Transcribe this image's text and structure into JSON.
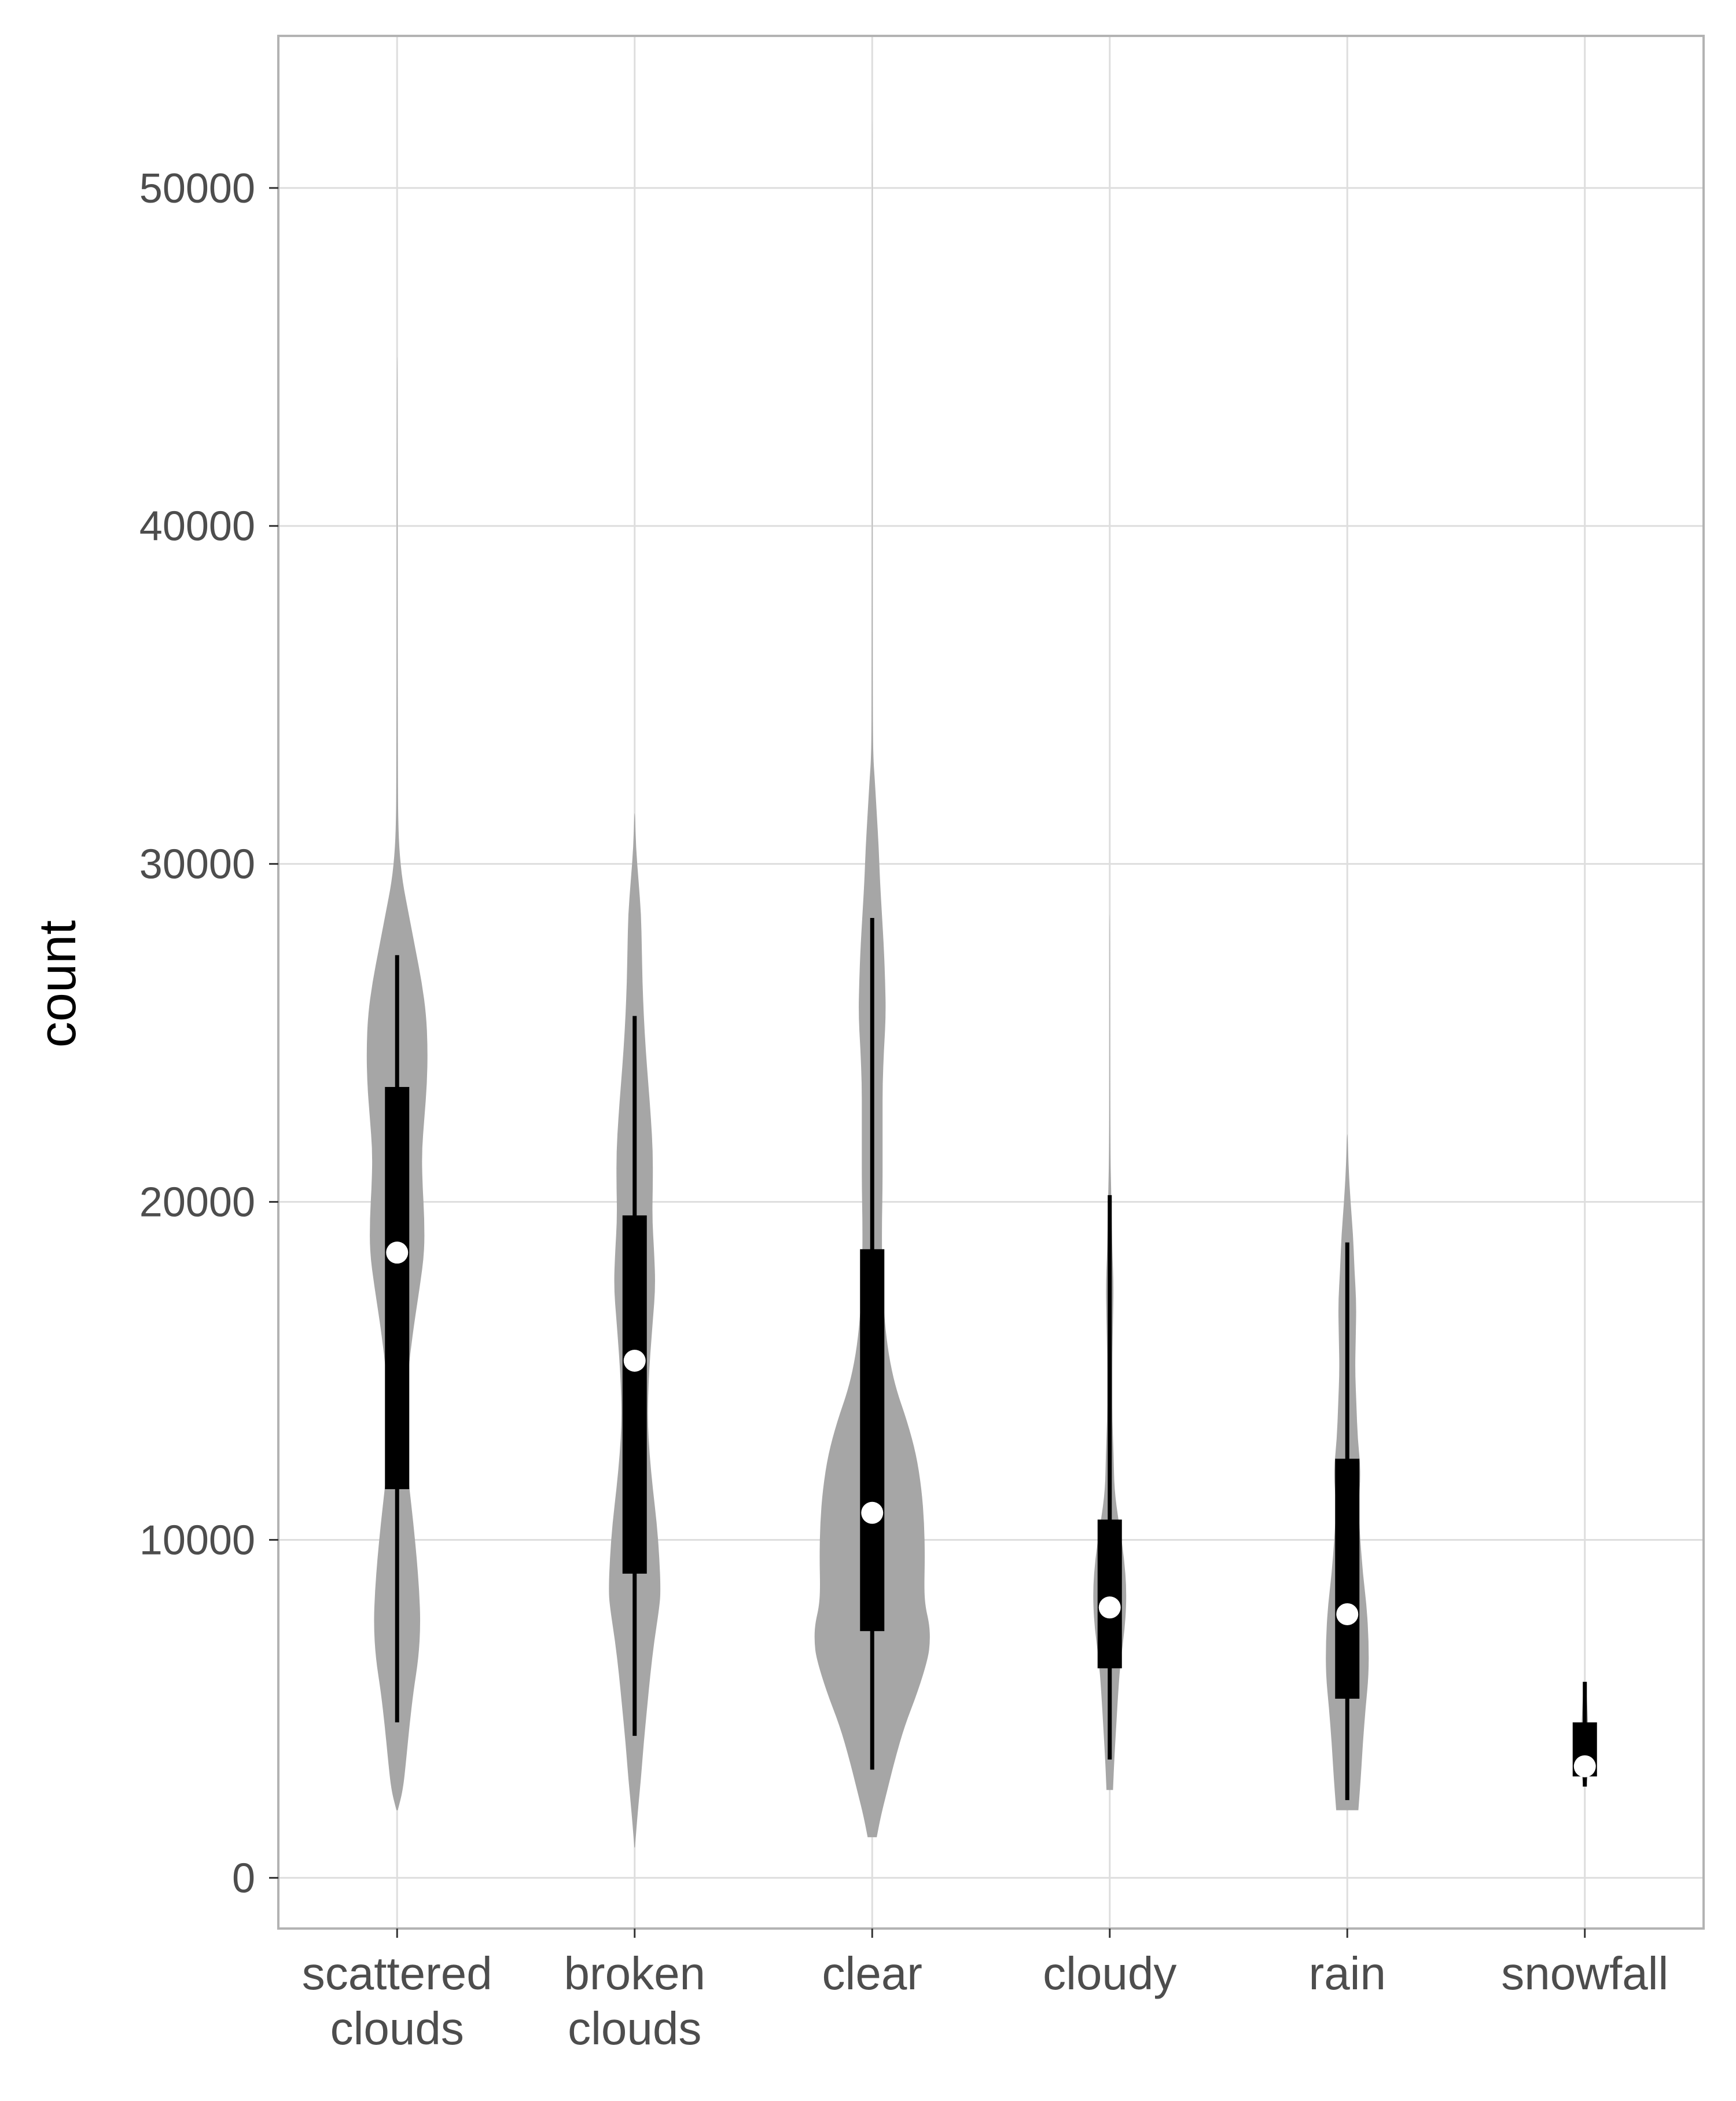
{
  "chart_data": {
    "type": "violin",
    "xlabel": "",
    "ylabel": "count",
    "ylim": [
      -1500,
      54500
    ],
    "y_ticks": [
      0,
      10000,
      20000,
      30000,
      40000,
      50000
    ],
    "y_tick_labels": [
      "0",
      "10000",
      "20000",
      "30000",
      "40000",
      "50000"
    ],
    "grid": true,
    "colors": {
      "violin_fill": "#a6a6a6",
      "box": "#000000",
      "median_dot": "#ffffff",
      "grid": "#dedede",
      "border": "#b3b3b3"
    },
    "categories": [
      {
        "label": [
          "scattered",
          "clouds"
        ],
        "min": 4600,
        "q1": 11500,
        "median": 18500,
        "q3": 23400,
        "max": 27300,
        "density": [
          [
            2000,
            1
          ],
          [
            2600,
            9
          ],
          [
            3500,
            14
          ],
          [
            4500,
            19
          ],
          [
            5500,
            25
          ],
          [
            6500,
            33
          ],
          [
            7500,
            36
          ],
          [
            8500,
            34
          ],
          [
            9500,
            30
          ],
          [
            10500,
            25
          ],
          [
            11500,
            19
          ],
          [
            12500,
            14
          ],
          [
            13500,
            12
          ],
          [
            14500,
            15
          ],
          [
            15500,
            20
          ],
          [
            16500,
            27
          ],
          [
            17500,
            35
          ],
          [
            18500,
            42
          ],
          [
            19500,
            42
          ],
          [
            20500,
            39
          ],
          [
            21500,
            38
          ],
          [
            22500,
            42
          ],
          [
            23500,
            46
          ],
          [
            24500,
            47
          ],
          [
            25500,
            45
          ],
          [
            26500,
            38
          ],
          [
            27500,
            28
          ],
          [
            28500,
            18
          ],
          [
            29500,
            8
          ],
          [
            30500,
            3
          ],
          [
            31500,
            1.5
          ],
          [
            33000,
            1
          ],
          [
            38000,
            0.6
          ],
          [
            45000,
            0.3
          ]
        ]
      },
      {
        "label": [
          "broken",
          "clouds"
        ],
        "min": 4200,
        "q1": 9000,
        "median": 15300,
        "q3": 19600,
        "max": 25500,
        "density": [
          [
            900,
            0.5
          ],
          [
            2000,
            5
          ],
          [
            3000,
            10
          ],
          [
            4000,
            14
          ],
          [
            5000,
            19
          ],
          [
            6000,
            24
          ],
          [
            7000,
            30
          ],
          [
            8000,
            38
          ],
          [
            8500,
            40
          ],
          [
            9500,
            38
          ],
          [
            10500,
            34
          ],
          [
            11500,
            28
          ],
          [
            12500,
            23
          ],
          [
            13500,
            20
          ],
          [
            14500,
            21
          ],
          [
            15500,
            24
          ],
          [
            16500,
            28
          ],
          [
            17500,
            32
          ],
          [
            18500,
            30
          ],
          [
            19500,
            27
          ],
          [
            20500,
            28
          ],
          [
            21500,
            28
          ],
          [
            22500,
            25
          ],
          [
            23500,
            21
          ],
          [
            24500,
            17
          ],
          [
            25500,
            14
          ],
          [
            26500,
            12
          ],
          [
            27500,
            11
          ],
          [
            28500,
            10
          ],
          [
            29500,
            6
          ],
          [
            30500,
            2
          ],
          [
            31500,
            0.5
          ]
        ]
      },
      {
        "label": [
          "clear"
        ],
        "min": 3200,
        "q1": 7300,
        "median": 10800,
        "q3": 18600,
        "max": 28400,
        "density": [
          [
            1200,
            7
          ],
          [
            1800,
            13
          ],
          [
            2500,
            22
          ],
          [
            3500,
            35
          ],
          [
            4500,
            50
          ],
          [
            5500,
            70
          ],
          [
            6500,
            86
          ],
          [
            7000,
            89
          ],
          [
            7500,
            88
          ],
          [
            8000,
            82
          ],
          [
            8500,
            80
          ],
          [
            9500,
            81
          ],
          [
            10500,
            80
          ],
          [
            11500,
            76
          ],
          [
            12500,
            68
          ],
          [
            13500,
            54
          ],
          [
            14500,
            36
          ],
          [
            15500,
            25
          ],
          [
            16500,
            19
          ],
          [
            17500,
            16
          ],
          [
            18500,
            15
          ],
          [
            19500,
            15
          ],
          [
            20500,
            16
          ],
          [
            21500,
            16
          ],
          [
            22500,
            16
          ],
          [
            23500,
            16
          ],
          [
            24500,
            18
          ],
          [
            25500,
            21
          ],
          [
            26500,
            20
          ],
          [
            27500,
            18
          ],
          [
            28500,
            15
          ],
          [
            29500,
            12
          ],
          [
            30500,
            10
          ],
          [
            31500,
            7
          ],
          [
            32500,
            4
          ],
          [
            33200,
            1.5
          ],
          [
            35000,
            0.5
          ],
          [
            52000,
            0.2
          ]
        ]
      },
      {
        "label": [
          "cloudy"
        ],
        "min": 3500,
        "q1": 6200,
        "median": 8000,
        "q3": 10600,
        "max": 20200,
        "density": [
          [
            2600,
            5
          ],
          [
            3500,
            7
          ],
          [
            4500,
            10
          ],
          [
            5500,
            13
          ],
          [
            6500,
            17
          ],
          [
            7500,
            24
          ],
          [
            8500,
            26
          ],
          [
            9500,
            22
          ],
          [
            10500,
            14
          ],
          [
            11500,
            7
          ],
          [
            12500,
            6
          ],
          [
            13500,
            4
          ],
          [
            14500,
            4
          ],
          [
            15500,
            4
          ],
          [
            16500,
            5
          ],
          [
            17500,
            6
          ],
          [
            18500,
            4
          ],
          [
            19500,
            3
          ],
          [
            20500,
            2
          ],
          [
            21500,
            1
          ],
          [
            23000,
            0.5
          ],
          [
            28500,
            0.3
          ]
        ]
      },
      {
        "label": [
          "rain"
        ],
        "min": 2300,
        "q1": 5300,
        "median": 7800,
        "q3": 12400,
        "max": 18800,
        "density": [
          [
            2000,
            17
          ],
          [
            3000,
            21
          ],
          [
            4000,
            24
          ],
          [
            5000,
            28
          ],
          [
            6000,
            33
          ],
          [
            7000,
            33
          ],
          [
            8000,
            30
          ],
          [
            9000,
            24
          ],
          [
            10000,
            20
          ],
          [
            11000,
            17
          ],
          [
            12000,
            21
          ],
          [
            13000,
            16
          ],
          [
            14000,
            14
          ],
          [
            15000,
            12
          ],
          [
            16000,
            13
          ],
          [
            17000,
            14
          ],
          [
            18000,
            11
          ],
          [
            19000,
            9
          ],
          [
            20000,
            5
          ],
          [
            21000,
            2
          ],
          [
            22000,
            0.5
          ]
        ]
      },
      {
        "label": [
          "snowfall"
        ],
        "min": 2700,
        "q1": 3000,
        "median": 3300,
        "q3": 4600,
        "max": 5800,
        "density": [
          [
            2800,
            3
          ],
          [
            3300,
            6
          ],
          [
            4000,
            6
          ],
          [
            5000,
            4
          ],
          [
            5700,
            2
          ]
        ]
      }
    ]
  }
}
